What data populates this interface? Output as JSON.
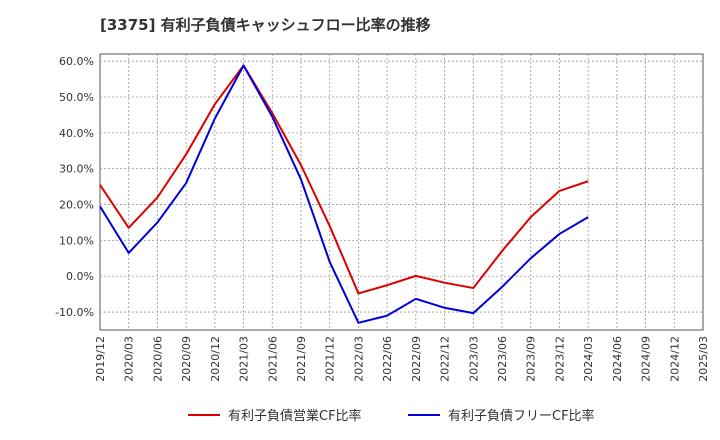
{
  "chart_data": {
    "type": "line",
    "title": "[3375]  有利子負債キャッシュフロー比率の推移",
    "x": [
      "2019/12",
      "2020/03",
      "2020/06",
      "2020/09",
      "2020/12",
      "2021/03",
      "2021/06",
      "2021/09",
      "2021/12",
      "2022/03",
      "2022/06",
      "2022/09",
      "2022/12",
      "2023/03",
      "2023/06",
      "2023/09",
      "2023/12",
      "2024/03",
      "2024/06",
      "2024/09",
      "2024/12",
      "2025/03"
    ],
    "y_ticks": [
      "60.0%",
      "50.0%",
      "40.0%",
      "30.0%",
      "20.0%",
      "10.0%",
      "0.0%",
      "-10.0%"
    ],
    "ylim": [
      -15,
      62
    ],
    "grid": true,
    "legend_position": "bottom",
    "series": [
      {
        "name": "有利子負債営業CF比率",
        "color": "#dd0000",
        "values": [
          25.5,
          13.5,
          22.0,
          34.0,
          48.0,
          58.8,
          45.5,
          31.0,
          14.0,
          -4.8,
          -2.5,
          0.1,
          -1.8,
          -3.3,
          7.0,
          16.5,
          23.8,
          26.5,
          null,
          null,
          null,
          null
        ]
      },
      {
        "name": "有利子負債フリーCF比率",
        "color": "#0000dd",
        "values": [
          19.5,
          6.5,
          15.0,
          26.0,
          44.0,
          58.8,
          44.5,
          27.0,
          4.0,
          -13.0,
          -11.0,
          -6.3,
          -8.8,
          -10.3,
          -3.0,
          5.0,
          11.8,
          16.5,
          null,
          null,
          null,
          null
        ]
      }
    ]
  }
}
